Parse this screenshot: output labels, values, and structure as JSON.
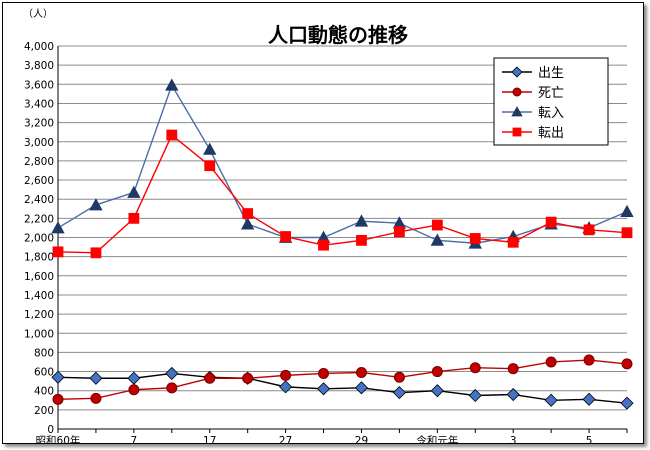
{
  "chart_data": {
    "type": "line",
    "title": "人口動態の推移",
    "y_unit_label": "（人）",
    "ylim": [
      0,
      4000
    ],
    "y_step": 200,
    "grid": "horizontal",
    "legend_position": "top-right",
    "x_tick_labels": [
      "昭和60年",
      "",
      "7",
      "",
      "17",
      "",
      "27",
      "",
      "29",
      "",
      "令和元年",
      "",
      "3",
      "",
      "5",
      ""
    ],
    "series": [
      {
        "name": "出生",
        "color": "#4472C4",
        "line_color": "#000000",
        "marker": "diamond",
        "values": [
          540,
          530,
          530,
          580,
          540,
          530,
          440,
          420,
          430,
          380,
          400,
          350,
          360,
          300,
          310,
          270
        ]
      },
      {
        "name": "死亡",
        "color": "#C00000",
        "line_color": "#C00000",
        "marker": "circle",
        "values": [
          310,
          320,
          410,
          430,
          530,
          530,
          560,
          580,
          590,
          540,
          600,
          640,
          630,
          700,
          720,
          680
        ]
      },
      {
        "name": "転入",
        "color": "#1F3864",
        "line_color": "#4A6EA5",
        "marker": "triangle",
        "values": [
          2100,
          2340,
          2470,
          3590,
          2920,
          2140,
          2000,
          2000,
          2170,
          2150,
          1970,
          1940,
          2010,
          2140,
          2100,
          2270
        ]
      },
      {
        "name": "転出",
        "color": "#FF0000",
        "line_color": "#FF0000",
        "marker": "square",
        "values": [
          1850,
          1840,
          2200,
          3070,
          2750,
          2250,
          2010,
          1920,
          1970,
          2060,
          2130,
          1990,
          1950,
          2160,
          2080,
          2050
        ]
      }
    ]
  }
}
